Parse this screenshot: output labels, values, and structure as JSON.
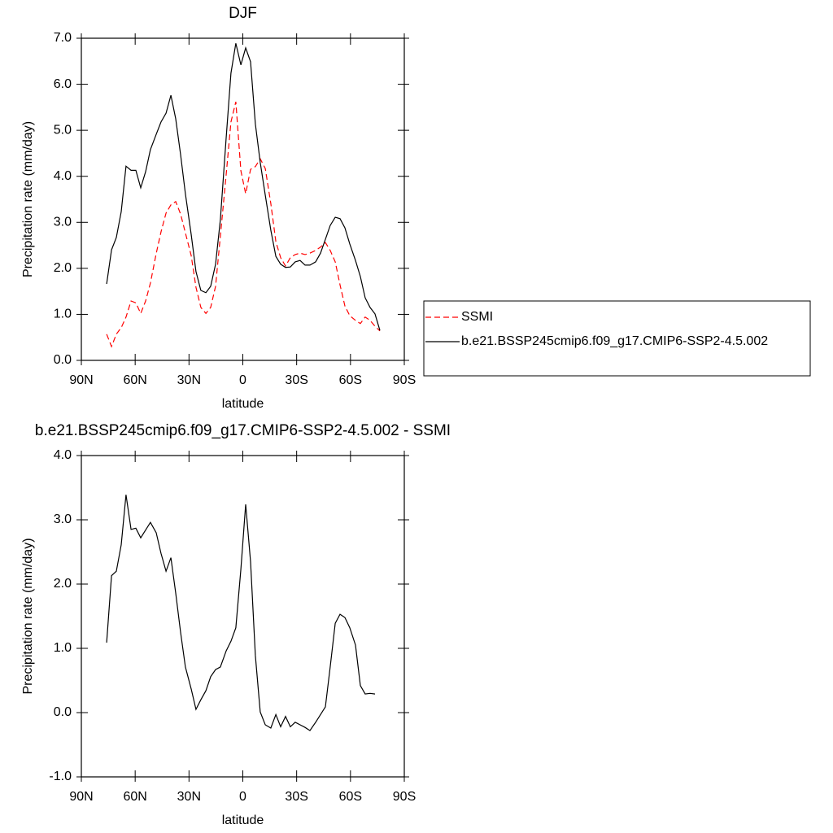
{
  "chart_data": [
    {
      "type": "line",
      "title": "DJF",
      "xlabel": "latitude",
      "ylabel": "Precipitation rate (mm/day)",
      "x": [
        75.9,
        73.2,
        70.5,
        67.8,
        65.1,
        62.3,
        59.6,
        56.9,
        54.2,
        51.5,
        48.3,
        45.6,
        42.8,
        40.1,
        37.4,
        34.7,
        32.0,
        28.8,
        26.1,
        23.4,
        20.6,
        17.9,
        15.2,
        12.5,
        9.3,
        6.6,
        3.9,
        1.1,
        -1.6,
        -4.3,
        -7.0,
        -9.7,
        -12.5,
        -15.6,
        -18.4,
        -21.1,
        -23.8,
        -26.5,
        -29.2,
        -31.9,
        -34.7,
        -37.4,
        -40.6,
        -43.3,
        -46.0,
        -48.7,
        -51.5,
        -54.2,
        -56.9,
        -59.6,
        -62.8,
        -65.5,
        -68.2,
        -70.9,
        -73.7,
        -76.4
      ],
      "series": [
        {
          "name": "SSMI",
          "color": "#ff0000",
          "dash": true,
          "values": [
            0.57,
            0.3,
            0.57,
            0.71,
            0.94,
            1.29,
            1.25,
            1.02,
            1.29,
            1.68,
            2.32,
            2.79,
            3.2,
            3.38,
            3.45,
            3.18,
            2.77,
            2.28,
            1.59,
            1.15,
            1.02,
            1.15,
            1.61,
            2.7,
            4.03,
            5.18,
            5.62,
            4.12,
            3.62,
            4.15,
            4.21,
            4.38,
            4.17,
            3.41,
            2.58,
            2.23,
            2.05,
            2.23,
            2.3,
            2.33,
            2.3,
            2.33,
            2.39,
            2.46,
            2.56,
            2.39,
            2.14,
            1.64,
            1.18,
            0.97,
            0.87,
            0.8,
            0.94,
            0.87,
            0.74,
            0.64
          ]
        },
        {
          "name": "b.e21.BSSP245cmip6.f09_g17.CMIP6-SSP2-4.5.002",
          "color": "#000000",
          "dash": false,
          "values": [
            1.66,
            2.4,
            2.67,
            3.23,
            4.22,
            4.13,
            4.13,
            3.75,
            4.1,
            4.58,
            4.91,
            5.18,
            5.37,
            5.76,
            5.25,
            4.47,
            3.62,
            2.74,
            1.93,
            1.52,
            1.47,
            1.61,
            2.09,
            3.06,
            4.83,
            6.24,
            6.89,
            6.42,
            6.79,
            6.49,
            5.14,
            4.3,
            3.59,
            2.83,
            2.26,
            2.09,
            2.02,
            2.03,
            2.14,
            2.17,
            2.07,
            2.07,
            2.14,
            2.33,
            2.63,
            2.93,
            3.11,
            3.08,
            2.88,
            2.53,
            2.17,
            1.82,
            1.36,
            1.15,
            1.01,
            0.65
          ]
        }
      ],
      "xlim": [
        90,
        -90
      ],
      "xticks": [
        {
          "value": 90,
          "label": "90N"
        },
        {
          "value": 60,
          "label": "60N"
        },
        {
          "value": 30,
          "label": "30N"
        },
        0,
        {
          "value": -30,
          "label": "30S"
        },
        {
          "value": -60,
          "label": "60S"
        },
        {
          "value": -90,
          "label": "90S"
        }
      ],
      "ylim": [
        0,
        7
      ],
      "yticks": [
        {
          "value": 0,
          "label": "0.0"
        },
        {
          "value": 1,
          "label": "1.0"
        },
        {
          "value": 2,
          "label": "2.0"
        },
        {
          "value": 3,
          "label": "3.0"
        },
        {
          "value": 4,
          "label": "4.0"
        },
        {
          "value": 5,
          "label": "5.0"
        },
        {
          "value": 6,
          "label": "6.0"
        },
        {
          "value": 7,
          "label": "7.0"
        }
      ],
      "legend": "right"
    },
    {
      "type": "line",
      "title": "b.e21.BSSP245cmip6.f09_g17.CMIP6-SSP2-4.5.002 - SSMI",
      "xlabel": "latitude",
      "ylabel": "Precipitation rate (mm/day)",
      "x": [
        75.9,
        73.2,
        70.5,
        67.8,
        65.1,
        62.3,
        59.6,
        56.9,
        54.2,
        51.5,
        48.3,
        45.6,
        42.8,
        40.1,
        37.4,
        34.7,
        32.0,
        28.8,
        26.1,
        23.4,
        20.6,
        17.9,
        15.2,
        12.5,
        9.3,
        6.6,
        3.9,
        1.1,
        -1.6,
        -4.3,
        -7.0,
        -9.7,
        -12.5,
        -15.6,
        -18.4,
        -21.1,
        -23.8,
        -26.5,
        -29.2,
        -31.9,
        -34.7,
        -37.4,
        -40.6,
        -43.3,
        -46.0,
        -48.7,
        -51.5,
        -54.2,
        -56.9,
        -59.6,
        -62.8,
        -65.5,
        -68.2,
        -70.9,
        -73.7,
        -76.4
      ],
      "series": [
        {
          "color": "#000000",
          "dash": false,
          "values": [
            1.09,
            2.13,
            2.2,
            2.61,
            3.39,
            2.85,
            2.87,
            2.72,
            2.84,
            2.96,
            2.8,
            2.48,
            2.2,
            2.41,
            1.86,
            1.25,
            0.71,
            0.37,
            0.05,
            0.2,
            0.34,
            0.56,
            0.67,
            0.71,
            0.96,
            1.11,
            1.32,
            2.23,
            3.24,
            2.35,
            0.89,
            0.01,
            -0.19,
            -0.24,
            -0.03,
            -0.22,
            -0.06,
            -0.22,
            -0.15,
            -0.19,
            -0.23,
            -0.28,
            -0.15,
            -0.03,
            0.09,
            0.71,
            1.39,
            1.53,
            1.48,
            1.32,
            1.05,
            0.42,
            0.29,
            0.3,
            0.29,
            null
          ]
        }
      ],
      "xlim": [
        90,
        -90
      ],
      "xticks": [
        {
          "value": 90,
          "label": "90N"
        },
        {
          "value": 60,
          "label": "60N"
        },
        {
          "value": 30,
          "label": "30N"
        },
        0,
        {
          "value": -30,
          "label": "30S"
        },
        {
          "value": -60,
          "label": "60S"
        },
        {
          "value": -90,
          "label": "90S"
        }
      ],
      "ylim": [
        -1,
        4
      ],
      "yticks": [
        {
          "value": -1,
          "label": "-1.0"
        },
        {
          "value": 0,
          "label": "0.0"
        },
        {
          "value": 1,
          "label": "1.0"
        },
        {
          "value": 2,
          "label": "2.0"
        },
        {
          "value": 3,
          "label": "3.0"
        },
        {
          "value": 4,
          "label": "4.0"
        }
      ]
    }
  ]
}
